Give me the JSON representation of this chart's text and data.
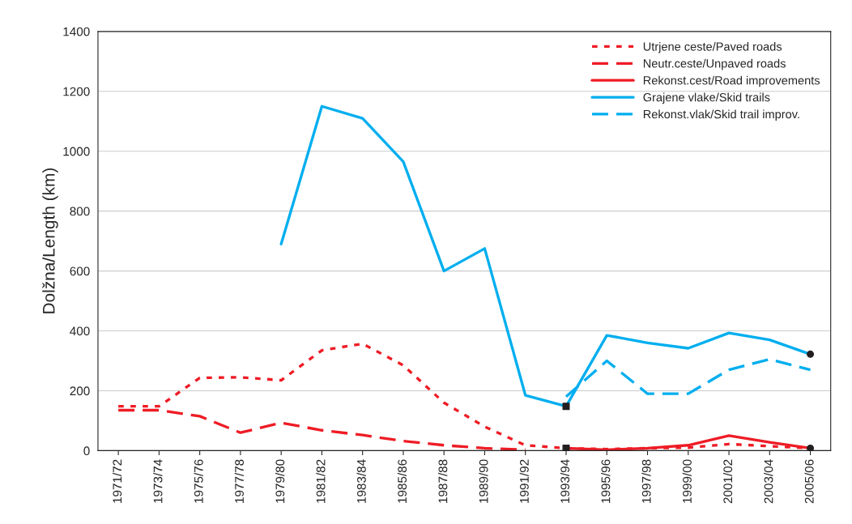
{
  "chart_data": {
    "type": "line",
    "ylabel": "Dolžna/Length (km)",
    "categories": [
      "1971/72",
      "1973/74",
      "1975/76",
      "1977/78",
      "1979/80",
      "1981/82",
      "1983/84",
      "1985/86",
      "1987/88",
      "1989/90",
      "1991/92",
      "1993/94",
      "1995/96",
      "1997/98",
      "1999/00",
      "2001/02",
      "2003/04",
      "2005/06"
    ],
    "series": [
      {
        "name": "Utrjene ceste/Paved roads",
        "color": "#ee1c25",
        "line_style": "dotted",
        "values": [
          148,
          148,
          243,
          245,
          235,
          335,
          357,
          285,
          160,
          80,
          18,
          8,
          5,
          8,
          10,
          22,
          15,
          8
        ]
      },
      {
        "name": "Neutr.ceste/Unpaved roads",
        "color": "#ee1c25",
        "line_style": "dashed",
        "values": [
          135,
          135,
          115,
          60,
          93,
          68,
          52,
          32,
          18,
          8,
          3,
          null,
          null,
          null,
          null,
          null,
          null,
          null
        ]
      },
      {
        "name": "Rekonst.cest/Road improvements",
        "color": "#ee1c25",
        "line_style": "solid",
        "values": [
          null,
          null,
          null,
          null,
          null,
          null,
          null,
          null,
          null,
          null,
          null,
          8,
          3,
          8,
          18,
          50,
          28,
          8
        ]
      },
      {
        "name": "Grajene vlake/Skid trails",
        "color": "#00aeef",
        "line_style": "solid",
        "values": [
          null,
          null,
          null,
          null,
          690,
          1150,
          1110,
          965,
          600,
          675,
          185,
          148,
          385,
          360,
          342,
          393,
          370,
          322
        ]
      },
      {
        "name": "Rekonst.vlak/Skid trail improv.",
        "color": "#00aeef",
        "line_style": "dashed",
        "values": [
          null,
          null,
          null,
          null,
          null,
          null,
          null,
          null,
          null,
          null,
          null,
          180,
          300,
          190,
          190,
          270,
          305,
          270
        ]
      },
      {
        "type": "scatter",
        "color": "#231f20",
        "marker": "square",
        "x": [
          "1993/94",
          "1993/94"
        ],
        "values": [
          148,
          8
        ]
      },
      {
        "type": "scatter",
        "color": "#231f20",
        "marker": "circle",
        "x": [
          "2005/06",
          "2005/06"
        ],
        "values": [
          322,
          8
        ]
      }
    ],
    "ylim": [
      0,
      1400
    ],
    "yticks": [
      0,
      200,
      400,
      600,
      800,
      1000,
      1200,
      1400
    ],
    "grid": "y",
    "legend": "top right"
  }
}
